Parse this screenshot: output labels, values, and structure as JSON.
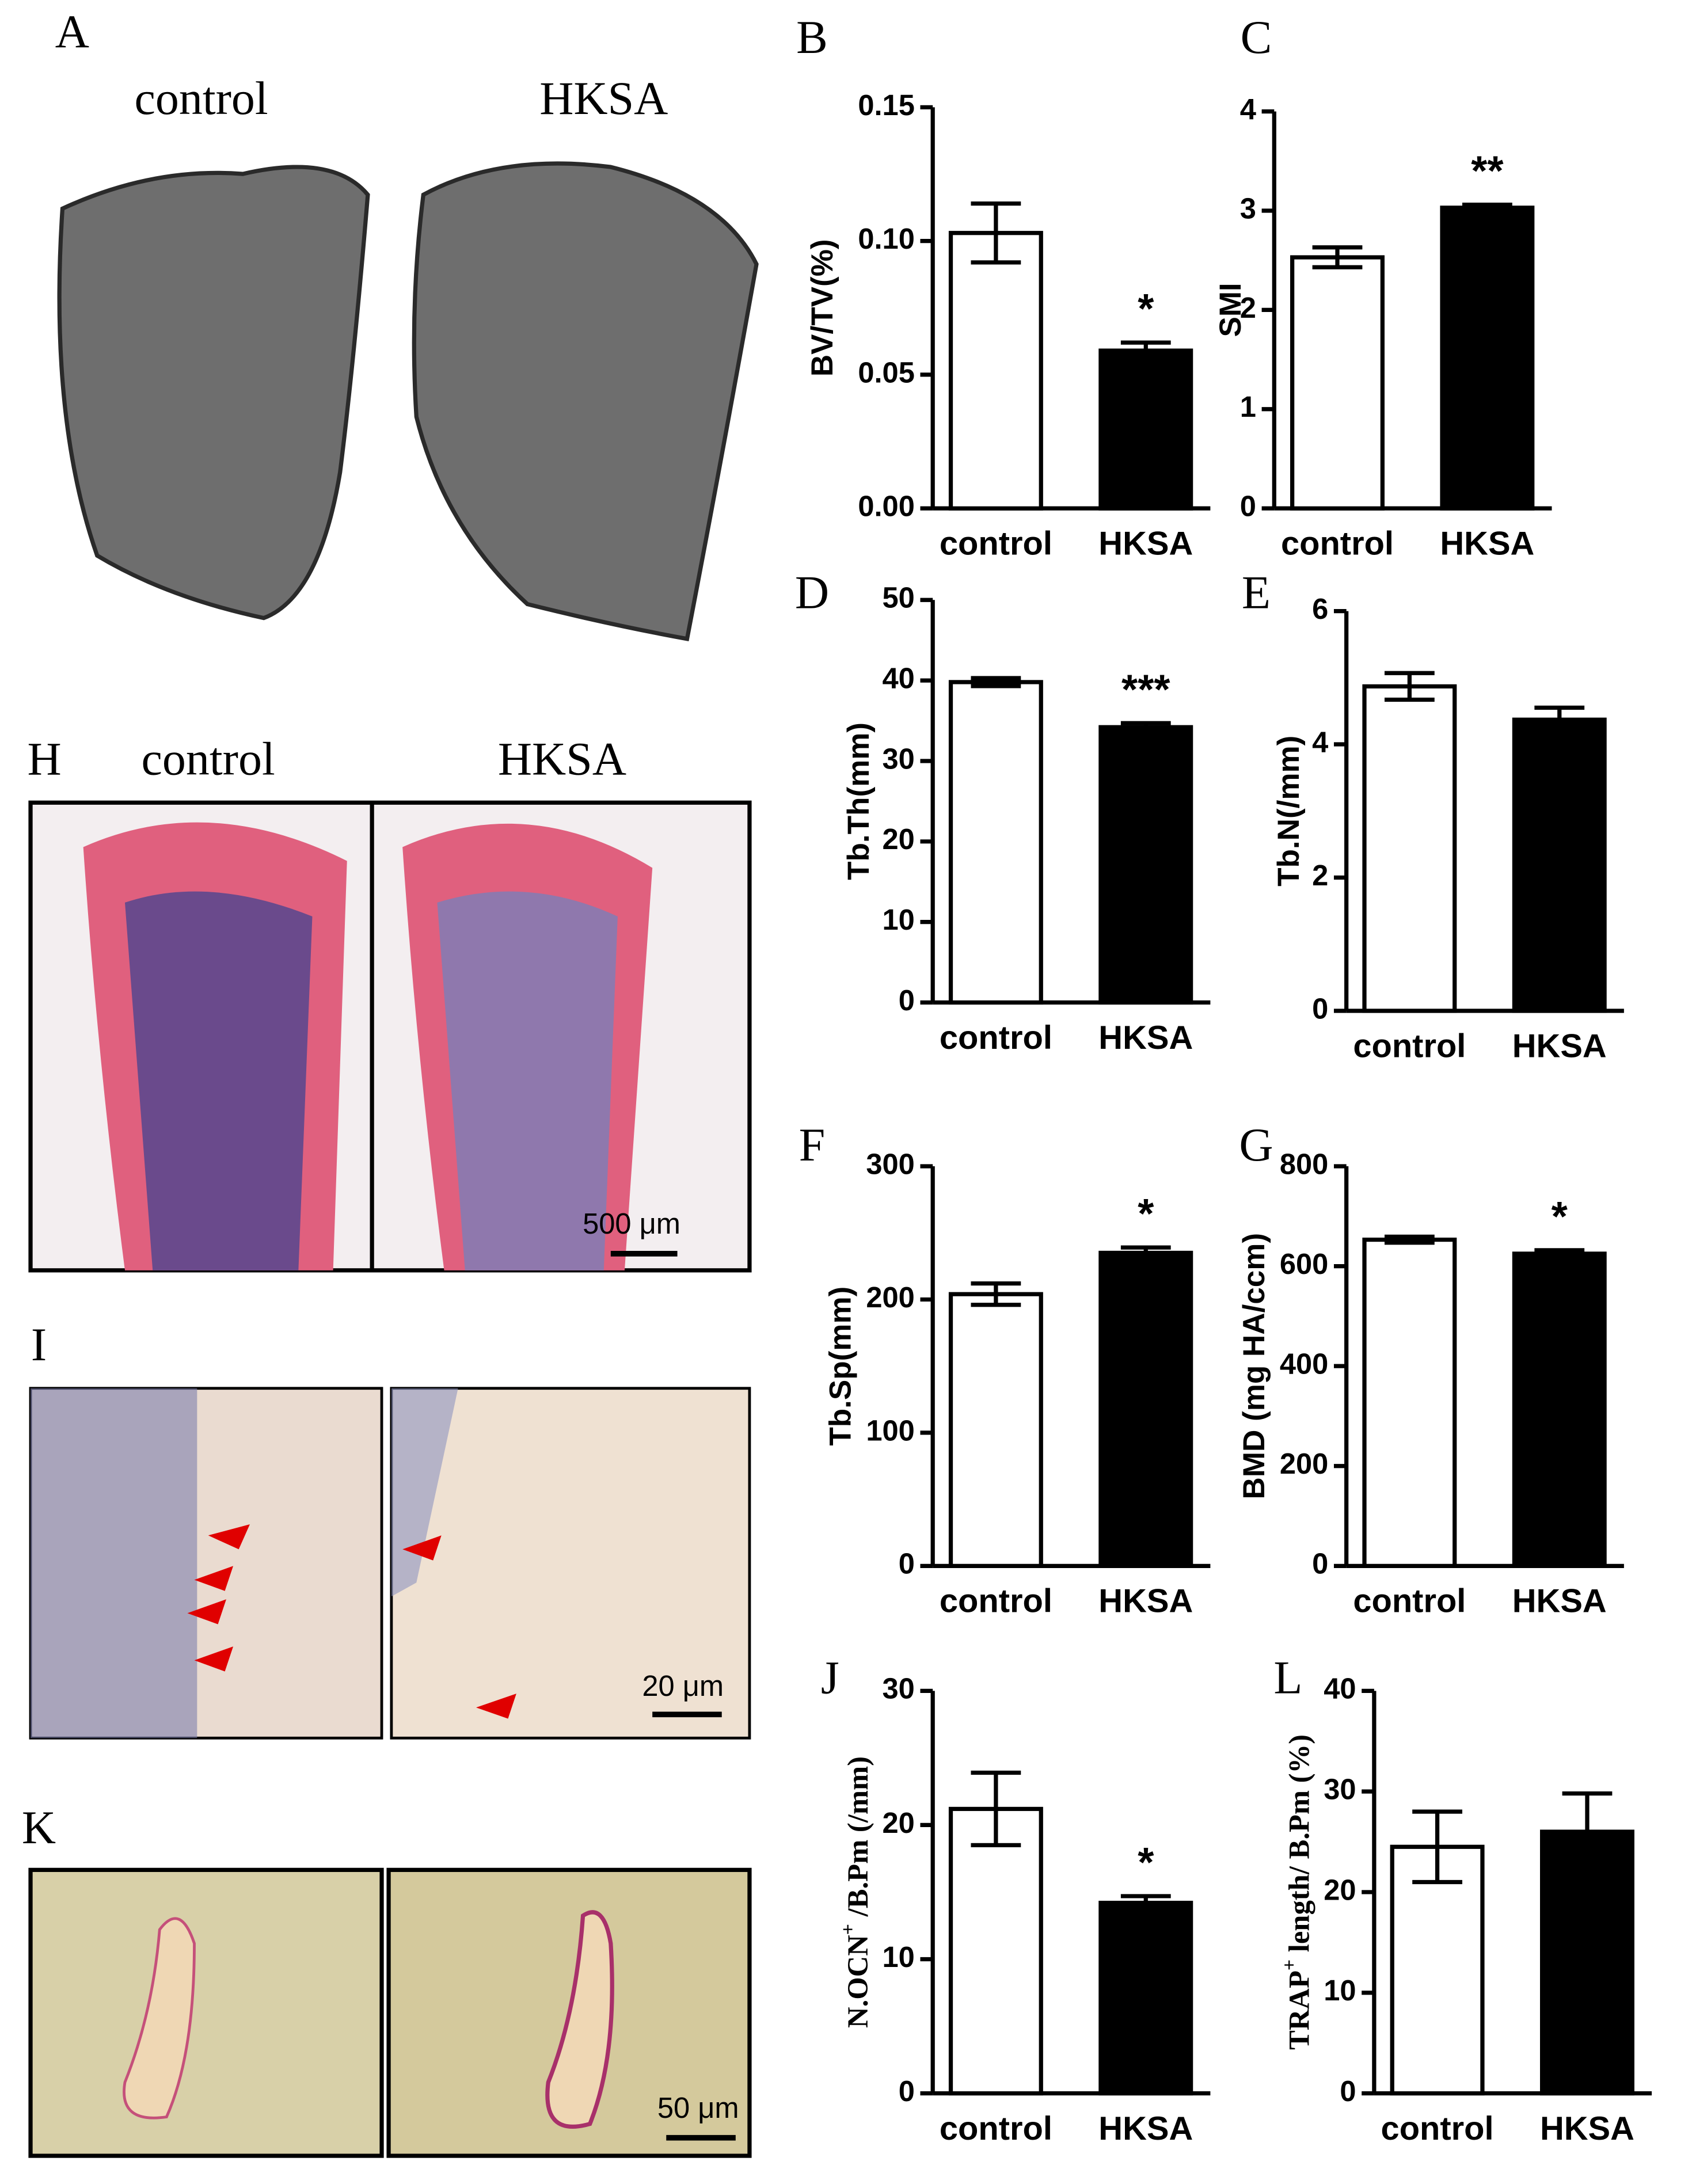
{
  "panels": {
    "A": {
      "letter": "A",
      "left": "control",
      "right": "HKSA"
    },
    "H": {
      "letter": "H",
      "left": "control",
      "right": "HKSA",
      "scale": "500 μm"
    },
    "I": {
      "letter": "I",
      "scale": "20 μm"
    },
    "K": {
      "letter": "K",
      "scale": "50 μm"
    }
  },
  "chart_data": [
    {
      "type": "bar",
      "panel": "B",
      "categories": [
        "control",
        "HKSA"
      ],
      "values": [
        0.103,
        0.059
      ],
      "errors": [
        0.011,
        0.003
      ],
      "colors": [
        "#ffffff",
        "#000000"
      ],
      "ylabel": {
        "text": "BV/TV(%)"
      },
      "ylim": [
        0,
        0.15
      ],
      "yticks": [
        {
          "value": 0,
          "label": "0.00"
        },
        {
          "value": 0.05,
          "label": "0.05"
        },
        {
          "value": 0.1,
          "label": "0.10"
        },
        {
          "value": 0.15,
          "label": "0.15"
        }
      ],
      "annotation": "*"
    },
    {
      "type": "bar",
      "panel": "C",
      "categories": [
        "control",
        "HKSA"
      ],
      "values": [
        2.53,
        3.03
      ],
      "errors": [
        0.1,
        0.03
      ],
      "colors": [
        "#ffffff",
        "#000000"
      ],
      "ylabel": {
        "text": "SMI"
      },
      "ylim": [
        0,
        4
      ],
      "yticks": [
        0,
        1,
        2,
        3,
        4
      ],
      "annotation": "**"
    },
    {
      "type": "bar",
      "panel": "D",
      "categories": [
        "control",
        "HKSA"
      ],
      "values": [
        39.8,
        34.2
      ],
      "errors": [
        0.5,
        0.5
      ],
      "colors": [
        "#ffffff",
        "#000000"
      ],
      "ylabel": {
        "text": "Tb.Th(mm)"
      },
      "ylim": [
        0,
        50
      ],
      "yticks": [
        0,
        10,
        20,
        30,
        40,
        50
      ],
      "annotation": "***"
    },
    {
      "type": "bar",
      "panel": "E",
      "categories": [
        "control",
        "HKSA"
      ],
      "values": [
        4.87,
        4.37
      ],
      "errors": [
        0.2,
        0.18
      ],
      "colors": [
        "#ffffff",
        "#000000"
      ],
      "ylabel": {
        "text": "Tb.N(/mm)"
      },
      "ylim": [
        0,
        6
      ],
      "yticks": [
        0,
        2,
        4,
        6
      ]
    },
    {
      "type": "bar",
      "panel": "F",
      "categories": [
        "control",
        "HKSA"
      ],
      "values": [
        204,
        235
      ],
      "errors": [
        8,
        4
      ],
      "colors": [
        "#ffffff",
        "#000000"
      ],
      "ylabel": {
        "text": "Tb.Sp(mm)"
      },
      "ylim": [
        0,
        300
      ],
      "yticks": [
        0,
        100,
        200,
        300
      ],
      "annotation": "*"
    },
    {
      "type": "bar",
      "panel": "G",
      "categories": [
        "control",
        "HKSA"
      ],
      "values": [
        653,
        625
      ],
      "errors": [
        6,
        7
      ],
      "colors": [
        "#ffffff",
        "#000000"
      ],
      "ylabel": {
        "text": "BMD (mg HA/ccm)"
      },
      "ylim": [
        0,
        800
      ],
      "yticks": [
        0,
        200,
        400,
        600,
        800
      ],
      "annotation": "*"
    },
    {
      "type": "bar",
      "panel": "J",
      "categories": [
        "control",
        "HKSA"
      ],
      "values": [
        21.2,
        14.2
      ],
      "errors": [
        2.7,
        0.5
      ],
      "colors": [
        "#ffffff",
        "#000000"
      ],
      "ylabel": {
        "text": "N.OCN",
        "sup": "+",
        "rest": " /B.Pm (/mm)"
      },
      "ylim": [
        0,
        30
      ],
      "yticks": [
        0,
        10,
        20,
        30
      ],
      "annotation": "*"
    },
    {
      "type": "bar",
      "panel": "L",
      "categories": [
        "control",
        "HKSA"
      ],
      "values": [
        24.5,
        26
      ],
      "errors": [
        3.5,
        3.8
      ],
      "colors": [
        "#ffffff",
        "#000000"
      ],
      "ylabel": {
        "text": "TRAP",
        "sup": "+",
        "rest": " length/ B.Pm (%)"
      },
      "ylim": [
        0,
        40
      ],
      "yticks": [
        0,
        10,
        20,
        30,
        40
      ]
    }
  ]
}
